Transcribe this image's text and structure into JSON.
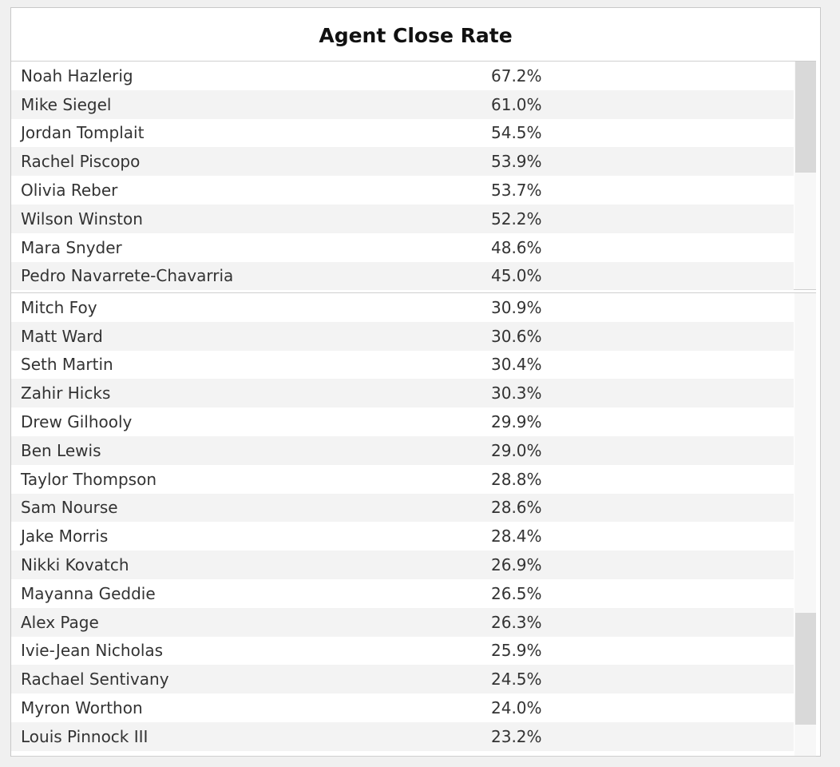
{
  "chart_data": {
    "type": "table",
    "title": "Agent Close Rate",
    "columns": [
      "",
      ""
    ],
    "groups": [
      {
        "rows": [
          {
            "name": "Noah Hazlerig",
            "value": "67.2%"
          },
          {
            "name": "Mike Siegel",
            "value": "61.0%"
          },
          {
            "name": "Jordan Tomplait",
            "value": "54.5%"
          },
          {
            "name": "Rachel Piscopo",
            "value": "53.9%"
          },
          {
            "name": "Olivia Reber",
            "value": "53.7%"
          },
          {
            "name": "Wilson Winston",
            "value": "52.2%"
          },
          {
            "name": "Mara Snyder",
            "value": "48.6%"
          },
          {
            "name": "Pedro Navarrete-Chavarria",
            "value": "45.0%"
          }
        ]
      },
      {
        "rows": [
          {
            "name": "Mitch Foy",
            "value": "30.9%"
          },
          {
            "name": "Matt Ward",
            "value": "30.6%"
          },
          {
            "name": "Seth Martin",
            "value": "30.4%"
          },
          {
            "name": "Zahir Hicks",
            "value": "30.3%"
          },
          {
            "name": "Drew Gilhooly",
            "value": "29.9%"
          },
          {
            "name": "Ben Lewis",
            "value": "29.0%"
          },
          {
            "name": "Taylor Thompson",
            "value": "28.8%"
          },
          {
            "name": "Sam Nourse",
            "value": "28.6%"
          },
          {
            "name": "Jake Morris",
            "value": "28.4%"
          },
          {
            "name": "Nikki Kovatch",
            "value": "26.9%"
          },
          {
            "name": "Mayanna Geddie",
            "value": "26.5%"
          },
          {
            "name": "Alex Page",
            "value": "26.3%"
          },
          {
            "name": "Ivie-Jean Nicholas",
            "value": "25.9%"
          },
          {
            "name": "Rachael Sentivany",
            "value": "24.5%"
          },
          {
            "name": "Myron Worthon",
            "value": "24.0%"
          },
          {
            "name": "Louis Pinnock III",
            "value": "23.2%"
          }
        ]
      }
    ]
  }
}
